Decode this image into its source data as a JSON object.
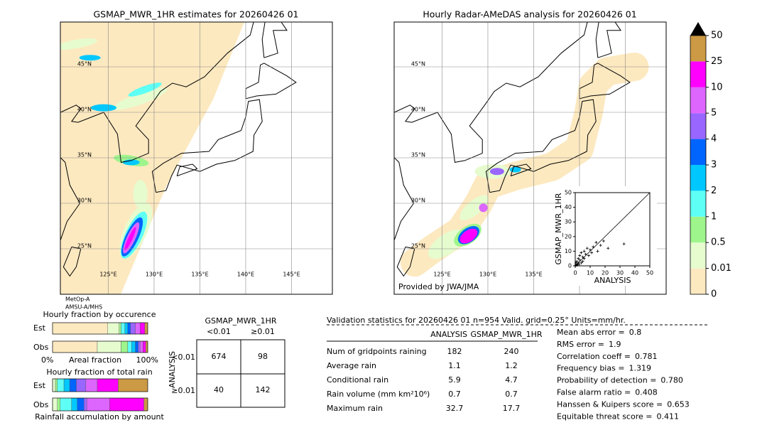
{
  "left_map": {
    "title": "GSMAP_MWR_1HR estimates for 20260426 01",
    "lat_labels": [
      "45°N",
      "40°N",
      "35°N",
      "30°N",
      "25°N"
    ],
    "lon_labels": [
      "125°E",
      "130°E",
      "135°E",
      "140°E",
      "145°E"
    ],
    "sensor_labels": [
      "MetOp-A",
      "AMSU-A/MHS"
    ]
  },
  "right_map": {
    "title": "Hourly Radar-AMeDAS analysis for 20260426 01",
    "lat_labels": [
      "45°N",
      "40°N",
      "35°N",
      "30°N",
      "25°N"
    ],
    "lon_labels": [
      "125°E",
      "130°E",
      "135°E"
    ],
    "credit": "Provided by JWA/JMA"
  },
  "scatter": {
    "xlabel": "ANALYSIS",
    "ylabel": "GSMAP_MWR_1HR",
    "lim": [
      0,
      50
    ],
    "ticks": [
      0,
      10,
      20,
      30,
      40,
      50
    ],
    "x": [
      0.3,
      0.5,
      1,
      1,
      1.5,
      2,
      2,
      2.5,
      3,
      3,
      4,
      4,
      5,
      5,
      6,
      6,
      7,
      8,
      9,
      10,
      11,
      12,
      14,
      15,
      17,
      19,
      22,
      32.7
    ],
    "y": [
      0.5,
      2,
      0.5,
      3,
      1,
      2,
      5,
      1,
      4,
      7,
      2,
      9,
      3,
      6,
      5,
      10,
      8,
      12,
      7,
      11,
      9,
      13,
      16,
      10,
      14,
      17,
      12,
      15
    ]
  },
  "colorbar": {
    "levels": [
      0,
      0.01,
      0.5,
      1,
      2,
      3,
      4,
      5,
      10,
      25,
      50
    ],
    "colors": [
      "#fde9c0",
      "#e6fccf",
      "#9ef58c",
      "#5efff5",
      "#00c8ff",
      "#0064ff",
      "#9966ff",
      "#dd66ff",
      "#ff00ff",
      "#cc9944"
    ],
    "over_color": "#000000"
  },
  "occurrence": {
    "title": "Hourly fraction by occurence",
    "rows": [
      "Est",
      "Obs"
    ],
    "axis_labels": [
      "0%",
      "Areal fraction",
      "100%"
    ],
    "est": [
      0.58,
      0.12,
      0.02,
      0.04,
      0.03,
      0.03,
      0.05,
      0.05,
      0.05,
      0.03
    ],
    "obs": [
      0.47,
      0.25,
      0.07,
      0.04,
      0.04,
      0.03,
      0.02,
      0.03,
      0.03,
      0.02
    ]
  },
  "total_rain": {
    "title": "Hourly fraction of total rain",
    "rows": [
      "Est",
      "Obs"
    ],
    "caption": "Rainfall accumulation by amount",
    "est": [
      0,
      0.03,
      0.02,
      0.07,
      0.06,
      0.07,
      0.1,
      0.12,
      0.22,
      0.31
    ],
    "obs": [
      0,
      0.05,
      0.03,
      0.12,
      0.06,
      0.07,
      0.03,
      0.24,
      0.36,
      0.04
    ]
  },
  "contingency": {
    "title": "GSMAP_MWR_1HR",
    "col_labels": [
      "<0.01",
      "≥0.01"
    ],
    "row_axis": "ANALYSIS",
    "row_labels": [
      "<0.01",
      "≥0.01"
    ],
    "cells": [
      [
        674,
        98
      ],
      [
        40,
        142
      ]
    ]
  },
  "validation": {
    "header": "Validation statistics for 20260426 01  n=954 Valid. grid=0.25° Units=mm/hr.",
    "columns": [
      "ANALYSIS",
      "GSMAP_MWR_1HR"
    ],
    "rows": [
      {
        "label": "Num of gridpoints raining",
        "analysis": 182,
        "gsmap": 240
      },
      {
        "label": "Average rain",
        "analysis": 1.1,
        "gsmap": 1.2
      },
      {
        "label": "Conditional rain",
        "analysis": 5.9,
        "gsmap": 4.7
      },
      {
        "label": "Rain volume (mm km²10⁶)",
        "analysis": 0.7,
        "gsmap": 0.7
      },
      {
        "label": "Maximum rain",
        "analysis": 32.7,
        "gsmap": 17.7
      }
    ],
    "scores": [
      {
        "label": "Mean abs error =",
        "value": "0.8"
      },
      {
        "label": "RMS error =",
        "value": "1.9"
      },
      {
        "label": "Correlation coeff =",
        "value": "0.781"
      },
      {
        "label": "Frequency bias =",
        "value": "1.319"
      },
      {
        "label": "Probability of detection =",
        "value": "0.780"
      },
      {
        "label": "False alarm ratio =",
        "value": "0.408"
      },
      {
        "label": "Hanssen & Kuipers score =",
        "value": "0.653"
      },
      {
        "label": "Equitable threat score =",
        "value": "0.411"
      }
    ]
  }
}
